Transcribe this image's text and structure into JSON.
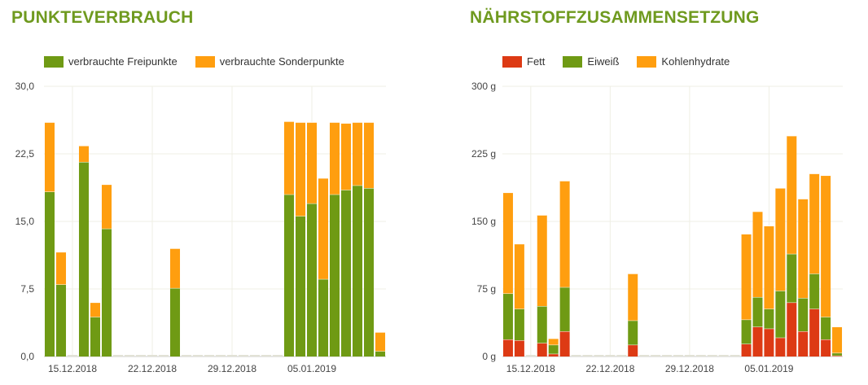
{
  "chart_data": [
    {
      "type": "bar",
      "stacked": true,
      "title": "PUNKTEVERBRAUCH",
      "x": [
        "2018-12-13",
        "2018-12-14",
        "2018-12-15",
        "2018-12-16",
        "2018-12-17",
        "2018-12-18",
        "2018-12-19",
        "2018-12-20",
        "2018-12-21",
        "2018-12-22",
        "2018-12-23",
        "2018-12-24",
        "2018-12-25",
        "2018-12-26",
        "2018-12-27",
        "2018-12-28",
        "2018-12-29",
        "2018-12-30",
        "2018-12-31",
        "2019-01-01",
        "2019-01-02",
        "2019-01-03",
        "2019-01-04",
        "2019-01-05",
        "2019-01-06",
        "2019-01-07",
        "2019-01-08",
        "2019-01-09",
        "2019-01-10",
        "2019-01-11"
      ],
      "series": [
        {
          "name": "verbrauchte Freipunkte",
          "color": "#6f9a14",
          "values": [
            18.3,
            8.0,
            0,
            21.6,
            4.4,
            14.2,
            0,
            0,
            0,
            0,
            0,
            7.6,
            0,
            0,
            0,
            0,
            0,
            0,
            0,
            0,
            0,
            18.0,
            15.6,
            17.0,
            8.6,
            18.0,
            18.5,
            19.0,
            18.7,
            0.6
          ]
        },
        {
          "name": "verbrauchte Sonderpunkte",
          "color": "#ff9e0f",
          "values": [
            7.7,
            3.6,
            0,
            1.8,
            1.6,
            4.9,
            0,
            0,
            0,
            0,
            0,
            4.4,
            0,
            0,
            0,
            0,
            0,
            0,
            0,
            0,
            0,
            8.1,
            10.4,
            9.0,
            11.2,
            8.0,
            7.4,
            7.0,
            7.3,
            2.1
          ]
        }
      ],
      "ylim": [
        0,
        30
      ],
      "yticks": [
        "0,0",
        "7,5",
        "15,0",
        "22,5",
        "30,0"
      ],
      "ytick_values": [
        0,
        7.5,
        15,
        22.5,
        30
      ],
      "xticks": [
        {
          "date": "2018-12-15",
          "label": "15.12.2018"
        },
        {
          "date": "2018-12-22",
          "label": "22.12.2018"
        },
        {
          "date": "2018-12-29",
          "label": "29.12.2018"
        },
        {
          "date": "2019-01-05",
          "label": "05.01.2019"
        }
      ],
      "legend_position": "top-left",
      "grid": true
    },
    {
      "type": "bar",
      "stacked": true,
      "title": "NÄHRSTOFFZUSAMMENSETZUNG",
      "x": [
        "2018-12-13",
        "2018-12-14",
        "2018-12-15",
        "2018-12-16",
        "2018-12-17",
        "2018-12-18",
        "2018-12-19",
        "2018-12-20",
        "2018-12-21",
        "2018-12-22",
        "2018-12-23",
        "2018-12-24",
        "2018-12-25",
        "2018-12-26",
        "2018-12-27",
        "2018-12-28",
        "2018-12-29",
        "2018-12-30",
        "2018-12-31",
        "2019-01-01",
        "2019-01-02",
        "2019-01-03",
        "2019-01-04",
        "2019-01-05",
        "2019-01-06",
        "2019-01-07",
        "2019-01-08",
        "2019-01-09",
        "2019-01-10",
        "2019-01-11"
      ],
      "series": [
        {
          "name": "Fett",
          "color": "#dd3a14",
          "values": [
            19,
            18,
            0,
            15,
            3,
            28,
            0,
            0,
            0,
            0,
            0,
            13,
            0,
            0,
            0,
            0,
            0,
            0,
            0,
            0,
            0,
            14,
            33,
            31,
            21,
            60,
            28,
            53,
            19,
            1
          ]
        },
        {
          "name": "Eiweiß",
          "color": "#6f9a14",
          "values": [
            51,
            35,
            0,
            41,
            10,
            49,
            0,
            0,
            0,
            0,
            0,
            27,
            0,
            0,
            0,
            0,
            0,
            0,
            0,
            0,
            0,
            27,
            33,
            22,
            52,
            54,
            37,
            39,
            25,
            3
          ]
        },
        {
          "name": "Kohlenhydrate",
          "color": "#ff9e0f",
          "values": [
            112,
            72,
            0,
            101,
            7,
            118,
            0,
            0,
            0,
            0,
            0,
            52,
            0,
            0,
            0,
            0,
            0,
            0,
            0,
            0,
            0,
            95,
            95,
            92,
            114,
            131,
            110,
            111,
            157,
            29
          ]
        }
      ],
      "ylim": [
        0,
        300
      ],
      "yticks": [
        "0 g",
        "75 g",
        "150 g",
        "225 g",
        "300 g"
      ],
      "ytick_values": [
        0,
        75,
        150,
        225,
        300
      ],
      "xticks": [
        {
          "date": "2018-12-15",
          "label": "15.12.2018"
        },
        {
          "date": "2018-12-22",
          "label": "22.12.2018"
        },
        {
          "date": "2018-12-29",
          "label": "29.12.2018"
        },
        {
          "date": "2019-01-05",
          "label": "05.01.2019"
        }
      ],
      "legend_position": "top-left",
      "grid": true
    }
  ]
}
